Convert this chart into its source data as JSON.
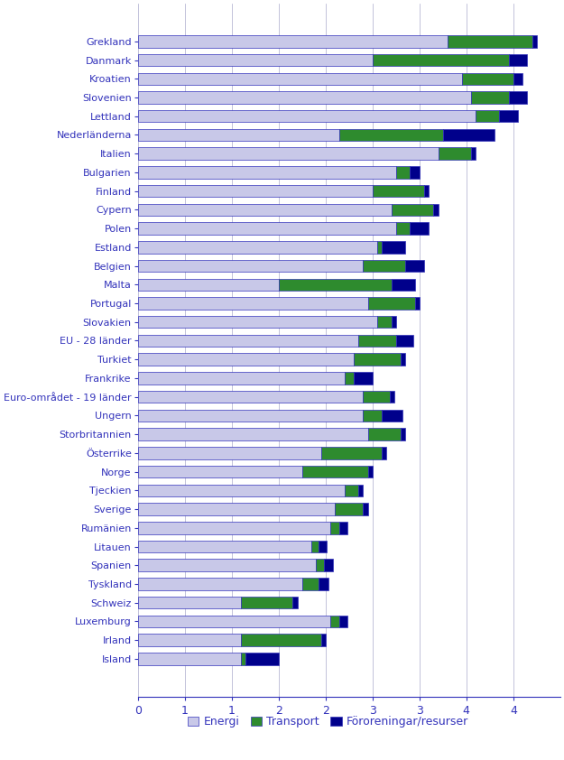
{
  "countries": [
    "Grekland",
    "Danmark",
    "Kroatien",
    "Slovenien",
    "Lettland",
    "Nederländerna",
    "Italien",
    "Bulgarien",
    "Finland",
    "Cypern",
    "Polen",
    "Estland",
    "Belgien",
    "Malta",
    "Portugal",
    "Slovakien",
    "EU - 28 länder",
    "Turkiet",
    "Frankrike",
    "Euro-området - 19 länder",
    "Ungern",
    "Storbritannien",
    "Österrike",
    "Norge",
    "Tjeckien",
    "Sverige",
    "Rumänien",
    "Litauen",
    "Spanien",
    "Tyskland",
    "Schweiz",
    "Luxemburg",
    "Irland",
    "Island"
  ],
  "energi": [
    3.3,
    2.5,
    3.45,
    3.55,
    3.6,
    2.15,
    3.2,
    2.75,
    2.5,
    2.7,
    2.75,
    2.55,
    2.4,
    1.5,
    2.45,
    2.55,
    2.35,
    2.3,
    2.2,
    2.4,
    2.4,
    2.45,
    1.95,
    1.75,
    2.2,
    2.1,
    2.05,
    1.85,
    1.9,
    1.75,
    1.1,
    2.05,
    1.1,
    1.1
  ],
  "transport": [
    0.9,
    1.45,
    0.55,
    0.4,
    0.25,
    1.1,
    0.35,
    0.15,
    0.55,
    0.45,
    0.15,
    0.05,
    0.45,
    1.2,
    0.5,
    0.15,
    0.4,
    0.5,
    0.1,
    0.28,
    0.2,
    0.35,
    0.65,
    0.7,
    0.15,
    0.3,
    0.1,
    0.08,
    0.08,
    0.18,
    0.55,
    0.1,
    0.85,
    0.05
  ],
  "fororeningar": [
    0.05,
    0.2,
    0.1,
    0.2,
    0.2,
    0.55,
    0.05,
    0.1,
    0.05,
    0.05,
    0.2,
    0.25,
    0.2,
    0.25,
    0.05,
    0.05,
    0.18,
    0.05,
    0.2,
    0.05,
    0.22,
    0.05,
    0.05,
    0.05,
    0.05,
    0.05,
    0.08,
    0.08,
    0.1,
    0.1,
    0.05,
    0.08,
    0.05,
    0.35
  ],
  "color_energi": "#c8c8e8",
  "color_transport": "#2e8b2e",
  "color_fororeningar": "#00008B",
  "xlim": [
    0,
    4.5
  ],
  "xticks": [
    0,
    0.5,
    1.0,
    1.5,
    2.0,
    2.5,
    3.0,
    3.5,
    4.0
  ],
  "xticklabels": [
    "0",
    "1",
    "1",
    "2",
    "2",
    "3",
    "3",
    "4",
    "4"
  ],
  "legend_labels": [
    "Energi",
    "Transport",
    "Föroreningar/resurser"
  ],
  "bar_height": 0.65,
  "label_color": "#3333BB",
  "axis_color": "#3333BB",
  "grid_color": "#aaaacc"
}
